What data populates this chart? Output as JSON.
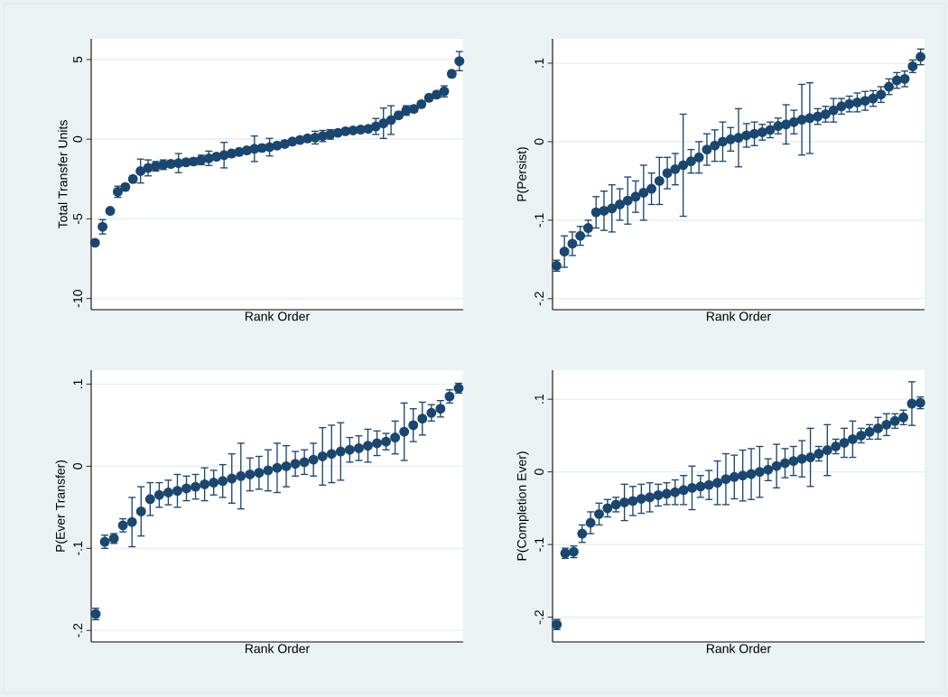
{
  "chart_data": [
    {
      "type": "scatter",
      "xlabel": "Rank Order",
      "ylabel": "Total Transfer Units",
      "color": "#1a476f",
      "marker": "circle",
      "grid": "y",
      "tick_labels": "y",
      "ylim": [
        -10.7,
        6.3
      ],
      "yticks": [
        -10,
        -5,
        0,
        5
      ],
      "categories": [
        null,
        null,
        null,
        null,
        null,
        null,
        null,
        null,
        null,
        null,
        null,
        null,
        null,
        null,
        null,
        null,
        null,
        null,
        null,
        null,
        null,
        null,
        null,
        null,
        null,
        null,
        null,
        null,
        null,
        null,
        null,
        null,
        null,
        null,
        null,
        null,
        null,
        null,
        null,
        null,
        null,
        null,
        null,
        null,
        null,
        null,
        null,
        null,
        null
      ],
      "values": [
        -6.5,
        -5.5,
        -4.5,
        -3.3,
        -3.0,
        -2.5,
        -2.0,
        -1.8,
        -1.7,
        -1.6,
        -1.55,
        -1.5,
        -1.45,
        -1.4,
        -1.3,
        -1.2,
        -1.1,
        -1.0,
        -0.9,
        -0.8,
        -0.7,
        -0.6,
        -0.55,
        -0.5,
        -0.4,
        -0.3,
        -0.15,
        -0.05,
        0.05,
        0.1,
        0.2,
        0.3,
        0.4,
        0.5,
        0.55,
        0.6,
        0.65,
        0.8,
        1.0,
        1.2,
        1.5,
        1.8,
        1.9,
        2.2,
        2.6,
        2.8,
        3.0,
        4.1,
        4.9
      ],
      "errors": [
        0.15,
        0.45,
        0.15,
        0.35,
        0.2,
        0.2,
        0.75,
        0.5,
        0.3,
        0.3,
        0.2,
        0.6,
        0.2,
        0.2,
        0.3,
        0.45,
        0.2,
        0.8,
        0.2,
        0.2,
        0.2,
        0.8,
        0.2,
        0.55,
        0.2,
        0.2,
        0.15,
        0.15,
        0.2,
        0.4,
        0.35,
        0.3,
        0.15,
        0.15,
        0.15,
        0.15,
        0.15,
        0.5,
        0.95,
        0.9,
        0.2,
        0.3,
        0.2,
        0.2,
        0.2,
        0.2,
        0.35,
        0.2,
        0.6
      ]
    },
    {
      "type": "scatter",
      "xlabel": "Rank Order",
      "ylabel": "P(Persist)",
      "color": "#1a476f",
      "marker": "circle",
      "grid": "y",
      "tick_labels": "y",
      "ylim": [
        -0.214,
        0.131
      ],
      "yticks": [
        {
          "value": -0.2,
          "label": "-.2"
        },
        {
          "value": -0.1,
          "label": "-.1"
        },
        0,
        {
          "value": 0.1,
          "label": ".1"
        }
      ],
      "categories": [
        null,
        null,
        null,
        null,
        null,
        null,
        null,
        null,
        null,
        null,
        null,
        null,
        null,
        null,
        null,
        null,
        null,
        null,
        null,
        null,
        null,
        null,
        null,
        null,
        null,
        null,
        null,
        null,
        null,
        null,
        null,
        null,
        null,
        null,
        null,
        null,
        null,
        null,
        null,
        null,
        null,
        null,
        null,
        null,
        null,
        null,
        null
      ],
      "values": [
        -0.158,
        -0.14,
        -0.13,
        -0.12,
        -0.11,
        -0.09,
        -0.088,
        -0.085,
        -0.08,
        -0.075,
        -0.07,
        -0.065,
        -0.06,
        -0.05,
        -0.04,
        -0.035,
        -0.03,
        -0.025,
        -0.02,
        -0.01,
        -0.005,
        0,
        0.003,
        0.005,
        0.008,
        0.01,
        0.012,
        0.015,
        0.02,
        0.022,
        0.025,
        0.028,
        0.03,
        0.032,
        0.035,
        0.04,
        0.045,
        0.048,
        0.05,
        0.052,
        0.055,
        0.06,
        0.07,
        0.078,
        0.08,
        0.096,
        0.108
      ],
      "errors": [
        0.007,
        0.02,
        0.015,
        0.012,
        0.01,
        0.02,
        0.025,
        0.03,
        0.02,
        0.03,
        0.02,
        0.035,
        0.02,
        0.03,
        0.02,
        0.02,
        0.065,
        0.015,
        0.02,
        0.02,
        0.02,
        0.025,
        0.015,
        0.037,
        0.015,
        0.015,
        0.01,
        0.01,
        0.01,
        0.025,
        0.015,
        0.045,
        0.045,
        0.01,
        0.01,
        0.015,
        0.01,
        0.01,
        0.012,
        0.012,
        0.01,
        0.01,
        0.01,
        0.01,
        0.01,
        0.008,
        0.01
      ]
    },
    {
      "type": "scatter",
      "xlabel": "Rank Order",
      "ylabel": "P(Ever Transfer)",
      "color": "#1a476f",
      "marker": "circle",
      "grid": "y",
      "tick_labels": "y",
      "ylim": [
        -0.214,
        0.117
      ],
      "yticks": [
        {
          "value": -0.2,
          "label": "-.2"
        },
        {
          "value": -0.1,
          "label": "-.1"
        },
        0,
        {
          "value": 0.1,
          "label": ".1"
        }
      ],
      "categories": [
        null,
        null,
        null,
        null,
        null,
        null,
        null,
        null,
        null,
        null,
        null,
        null,
        null,
        null,
        null,
        null,
        null,
        null,
        null,
        null,
        null,
        null,
        null,
        null,
        null,
        null,
        null,
        null,
        null,
        null,
        null,
        null,
        null,
        null,
        null,
        null,
        null,
        null,
        null,
        null,
        null
      ],
      "values": [
        -0.18,
        -0.092,
        -0.088,
        -0.072,
        -0.068,
        -0.055,
        -0.04,
        -0.035,
        -0.032,
        -0.03,
        -0.027,
        -0.025,
        -0.022,
        -0.02,
        -0.018,
        -0.015,
        -0.012,
        -0.01,
        -0.008,
        -0.005,
        -0.002,
        0,
        0.003,
        0.005,
        0.008,
        0.012,
        0.015,
        0.018,
        0.02,
        0.022,
        0.025,
        0.028,
        0.03,
        0.035,
        0.042,
        0.05,
        0.058,
        0.065,
        0.07,
        0.085,
        0.095
      ],
      "errors": [
        0.007,
        0.008,
        0.006,
        0.008,
        0.03,
        0.03,
        0.02,
        0.015,
        0.015,
        0.02,
        0.015,
        0.015,
        0.02,
        0.015,
        0.02,
        0.03,
        0.04,
        0.02,
        0.02,
        0.025,
        0.03,
        0.025,
        0.015,
        0.015,
        0.02,
        0.035,
        0.035,
        0.035,
        0.015,
        0.015,
        0.02,
        0.015,
        0.01,
        0.02,
        0.035,
        0.02,
        0.02,
        0.01,
        0.01,
        0.008,
        0.006
      ]
    },
    {
      "type": "scatter",
      "xlabel": "Rank Order",
      "ylabel": "P(Completion Ever)",
      "color": "#1a476f",
      "marker": "circle",
      "grid": "y",
      "tick_labels": "y",
      "ylim": [
        -0.234,
        0.14
      ],
      "yticks": [
        {
          "value": -0.2,
          "label": "-.2"
        },
        {
          "value": -0.1,
          "label": "-.1"
        },
        0,
        {
          "value": 0.1,
          "label": ".1"
        }
      ],
      "categories": [
        null,
        null,
        null,
        null,
        null,
        null,
        null,
        null,
        null,
        null,
        null,
        null,
        null,
        null,
        null,
        null,
        null,
        null,
        null,
        null,
        null,
        null,
        null,
        null,
        null,
        null,
        null,
        null,
        null,
        null,
        null,
        null,
        null,
        null,
        null,
        null,
        null,
        null,
        null,
        null,
        null,
        null,
        null,
        null
      ],
      "values": [
        -0.21,
        -0.112,
        -0.11,
        -0.085,
        -0.07,
        -0.058,
        -0.05,
        -0.045,
        -0.042,
        -0.04,
        -0.037,
        -0.035,
        -0.032,
        -0.03,
        -0.028,
        -0.025,
        -0.022,
        -0.02,
        -0.018,
        -0.015,
        -0.01,
        -0.007,
        -0.005,
        -0.003,
        0,
        0.003,
        0.008,
        0.012,
        0.015,
        0.018,
        0.02,
        0.025,
        0.03,
        0.035,
        0.04,
        0.045,
        0.05,
        0.055,
        0.06,
        0.065,
        0.07,
        0.075,
        0.094,
        0.095
      ],
      "errors": [
        0.007,
        0.007,
        0.008,
        0.012,
        0.015,
        0.015,
        0.012,
        0.01,
        0.025,
        0.02,
        0.02,
        0.02,
        0.015,
        0.015,
        0.017,
        0.02,
        0.03,
        0.015,
        0.02,
        0.03,
        0.035,
        0.03,
        0.035,
        0.035,
        0.035,
        0.015,
        0.03,
        0.02,
        0.02,
        0.025,
        0.04,
        0.01,
        0.035,
        0.01,
        0.02,
        0.025,
        0.01,
        0.01,
        0.015,
        0.015,
        0.01,
        0.01,
        0.03,
        0.008
      ]
    }
  ]
}
